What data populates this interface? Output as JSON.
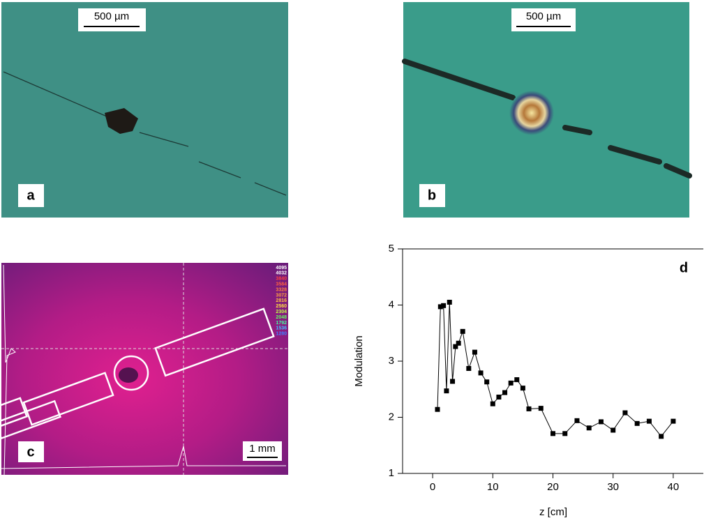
{
  "panels": [
    {
      "label": "a",
      "scale_bar": "500 µm"
    },
    {
      "label": "b",
      "scale_bar": "500 µm"
    },
    {
      "label": "c",
      "scale_bar": "1 mm"
    }
  ],
  "colorbar_labels": [
    "4095",
    "4032",
    "3840",
    "3584",
    "3328",
    "3072",
    "2816",
    "2560",
    "2304",
    "2048",
    "1792",
    "1536",
    "1280"
  ],
  "chart_data": {
    "type": "line",
    "label": "d",
    "x_label": "z [cm]",
    "y_label": "Modulation",
    "x": [
      0.8,
      1.3,
      1.8,
      2.3,
      2.8,
      3.3,
      3.8,
      4.3,
      5,
      6,
      7,
      8,
      9,
      10,
      11,
      12,
      13,
      14,
      15,
      16,
      18,
      20,
      22,
      24,
      26,
      28,
      30,
      32,
      34,
      36,
      38,
      40
    ],
    "series": [
      {
        "name": "Modulation",
        "color": "#000000",
        "values": [
          2.14,
          3.97,
          3.99,
          2.47,
          4.05,
          2.64,
          3.26,
          3.32,
          3.53,
          2.87,
          3.16,
          2.79,
          2.63,
          2.24,
          2.36,
          2.44,
          2.61,
          2.67,
          2.52,
          2.15,
          2.16,
          1.71,
          1.71,
          1.94,
          1.81,
          1.92,
          1.77,
          2.08,
          1.89,
          1.93,
          1.66,
          1.93
        ]
      }
    ],
    "xlim": [
      -5,
      45
    ],
    "xticks": [
      0,
      10,
      20,
      30,
      40
    ],
    "ylim": [
      1,
      5
    ],
    "yticks": [
      1,
      2,
      3,
      4,
      5
    ]
  }
}
